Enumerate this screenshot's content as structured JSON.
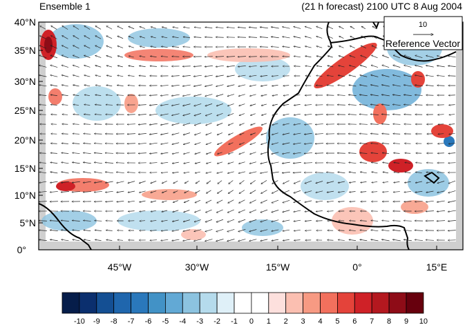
{
  "title_left": "Ensemble 1",
  "title_right": "(21 h forecast) 2100 UTC 8 Aug 2004",
  "reference_vector": {
    "value": "10",
    "label": "Reference Vector"
  },
  "y_ticks": [
    "40°N",
    "35°N",
    "30°N",
    "25°N",
    "20°N",
    "15°N",
    "10°N",
    "5°N",
    "0°"
  ],
  "x_ticks": [
    "45°W",
    "30°W",
    "15°W",
    "0°",
    "15°E"
  ],
  "colorbar": {
    "labels": [
      "-10",
      "-9",
      "-8",
      "-7",
      "-6",
      "-5",
      "-4",
      "-3",
      "-2",
      "-1",
      "0",
      "1",
      "2",
      "3",
      "4",
      "5",
      "6",
      "7",
      "8",
      "9",
      "10"
    ],
    "colors": [
      "#061d4a",
      "#0b2f6e",
      "#144f93",
      "#1f66ad",
      "#2a78bb",
      "#4292c6",
      "#62a9d5",
      "#8cc3e0",
      "#b5dbec",
      "#dff0f8",
      "#ffffff",
      "#ffffff",
      "#fde0dd",
      "#fbbfb1",
      "#f79a83",
      "#f2705d",
      "#e4433a",
      "#cf2127",
      "#b4181f",
      "#8e0c17",
      "#67000d"
    ]
  }
}
